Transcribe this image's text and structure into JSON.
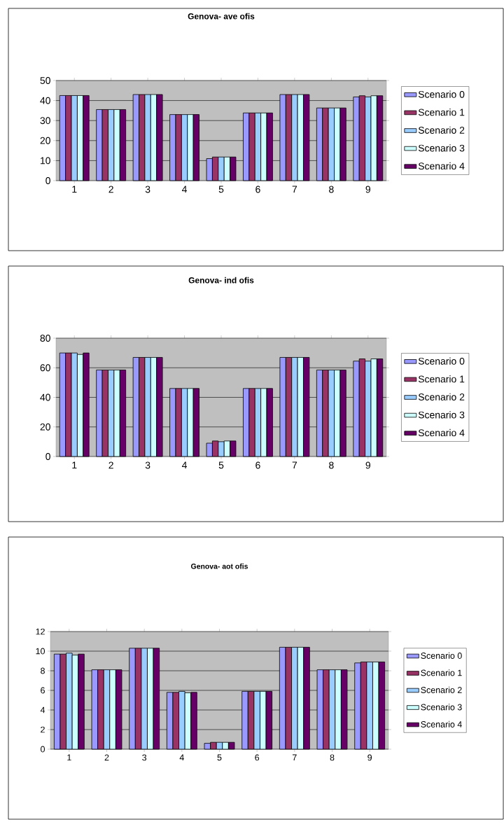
{
  "chart_data": [
    {
      "type": "bar",
      "title": "Genova- ave ofis",
      "categories": [
        "1",
        "2",
        "3",
        "4",
        "5",
        "6",
        "7",
        "8",
        "9"
      ],
      "series": [
        {
          "name": "Scenario 0",
          "color": "#9999ff",
          "values": [
            42.5,
            35.5,
            43,
            33,
            11,
            33.8,
            43,
            36.3,
            41.8
          ]
        },
        {
          "name": "Scenario 1",
          "color": "#993366",
          "values": [
            42.5,
            35.5,
            43,
            33,
            11.8,
            33.8,
            43,
            36.3,
            42.4
          ]
        },
        {
          "name": "Scenario 2",
          "color": "#99ccff",
          "values": [
            42.5,
            35.5,
            43,
            33,
            11.8,
            33.8,
            43,
            36.3,
            41.8
          ]
        },
        {
          "name": "Scenario 3",
          "color": "#ccffff",
          "values": [
            42.5,
            35.5,
            43,
            33,
            11.8,
            33.8,
            43,
            36.3,
            42.4
          ]
        },
        {
          "name": "Scenario 4",
          "color": "#660066",
          "values": [
            42.5,
            35.5,
            43,
            33,
            11.8,
            33.8,
            43,
            36.3,
            42.4
          ]
        }
      ],
      "ylim": [
        0,
        50
      ],
      "yticks": [
        0,
        10,
        20,
        30,
        40,
        50
      ],
      "grid": "y",
      "legend": "right"
    },
    {
      "type": "bar",
      "title": "Genova- ind ofis",
      "categories": [
        "1",
        "2",
        "3",
        "4",
        "5",
        "6",
        "7",
        "8",
        "9"
      ],
      "series": [
        {
          "name": "Scenario 0",
          "color": "#9999ff",
          "values": [
            70,
            58.5,
            67,
            46,
            9,
            46,
            67,
            58.5,
            64.5
          ]
        },
        {
          "name": "Scenario 1",
          "color": "#993366",
          "values": [
            70,
            58.5,
            67,
            46,
            10.5,
            46,
            67,
            58.5,
            66
          ]
        },
        {
          "name": "Scenario 2",
          "color": "#99ccff",
          "values": [
            70,
            58.5,
            67,
            46,
            10,
            46,
            67,
            58.5,
            64.5
          ]
        },
        {
          "name": "Scenario 3",
          "color": "#ccffff",
          "values": [
            69,
            58.5,
            67,
            46,
            10.5,
            46,
            67,
            58.5,
            66
          ]
        },
        {
          "name": "Scenario 4",
          "color": "#660066",
          "values": [
            70,
            58.5,
            67,
            46,
            10.5,
            46,
            67,
            58.5,
            66
          ]
        }
      ],
      "ylim": [
        0,
        80
      ],
      "yticks": [
        0,
        20,
        40,
        60,
        80
      ],
      "grid": "y",
      "legend": "right"
    },
    {
      "type": "bar",
      "title": "Genova- aot ofis",
      "categories": [
        "1",
        "2",
        "3",
        "4",
        "5",
        "6",
        "7",
        "8",
        "9"
      ],
      "series": [
        {
          "name": "Scenario 0",
          "color": "#9999ff",
          "values": [
            9.7,
            8.1,
            10.3,
            5.8,
            0.6,
            5.9,
            10.4,
            8.1,
            8.8
          ]
        },
        {
          "name": "Scenario 1",
          "color": "#993366",
          "values": [
            9.7,
            8.1,
            10.3,
            5.8,
            0.7,
            5.9,
            10.4,
            8.1,
            8.9
          ]
        },
        {
          "name": "Scenario 2",
          "color": "#99ccff",
          "values": [
            9.8,
            8.1,
            10.3,
            5.9,
            0.7,
            5.9,
            10.4,
            8.1,
            8.9
          ]
        },
        {
          "name": "Scenario 3",
          "color": "#ccffff",
          "values": [
            9.6,
            8.1,
            10.3,
            5.75,
            0.7,
            5.9,
            10.4,
            8.1,
            8.9
          ]
        },
        {
          "name": "Scenario 4",
          "color": "#660066",
          "values": [
            9.7,
            8.1,
            10.3,
            5.8,
            0.7,
            5.9,
            10.4,
            8.1,
            8.9
          ]
        }
      ],
      "ylim": [
        0,
        12
      ],
      "yticks": [
        0,
        2,
        4,
        6,
        8,
        10,
        12
      ],
      "grid": "y",
      "legend": "right"
    }
  ]
}
